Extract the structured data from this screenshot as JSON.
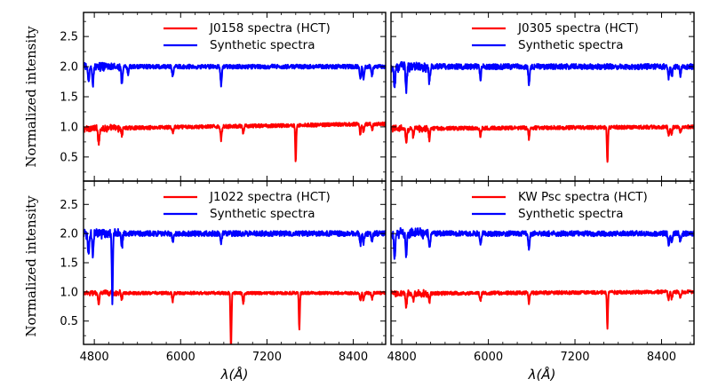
{
  "figure": {
    "ylabel": "Normalized intensity",
    "xlabel": "λ(Å)"
  },
  "chart_data": [
    {
      "type": "line",
      "panel": "top-left",
      "xlim": [
        4650,
        8850
      ],
      "ylim": [
        0.1,
        2.9
      ],
      "xticks": [
        4800,
        6000,
        7200,
        8400
      ],
      "xtick_labels": [
        "4800",
        "6000",
        "7200",
        "8400"
      ],
      "yticks": [
        0.5,
        1.0,
        1.5,
        2.0,
        2.5
      ],
      "ytick_labels": [
        "0.5",
        "1.0",
        "1.5",
        "2.0",
        "2.5"
      ],
      "legend_position": "top-right",
      "series": [
        {
          "name": "J0158 spectra (HCT)",
          "color": "#ff0000",
          "baseline": 0.97,
          "noise": 0.03,
          "slope": 0.08,
          "features": [
            [
              4861,
              0.26
            ],
            [
              5183,
              0.12
            ],
            [
              5890,
              0.1
            ],
            [
              6563,
              0.22
            ],
            [
              6870,
              0.14
            ],
            [
              7600,
              0.6
            ],
            [
              8498,
              0.16
            ],
            [
              8542,
              0.12
            ],
            [
              8662,
              0.1
            ]
          ]
        },
        {
          "name": "Synthetic spectra",
          "color": "#0000ff",
          "baseline": 2.0,
          "noise": 0.035,
          "slope": 0.0,
          "features": [
            [
              4720,
              0.28
            ],
            [
              4780,
              0.32
            ],
            [
              5183,
              0.3
            ],
            [
              5270,
              0.12
            ],
            [
              5890,
              0.15
            ],
            [
              6563,
              0.32
            ],
            [
              8498,
              0.22
            ],
            [
              8542,
              0.2
            ],
            [
              8662,
              0.15
            ]
          ]
        }
      ]
    },
    {
      "type": "line",
      "panel": "top-right",
      "xlim": [
        4650,
        8850
      ],
      "ylim": [
        0.1,
        2.9
      ],
      "xticks": [
        4800,
        6000,
        7200,
        8400
      ],
      "xtick_labels": [
        "4800",
        "6000",
        "7200",
        "8400"
      ],
      "yticks": [
        0.5,
        1.0,
        1.5,
        2.0,
        2.5
      ],
      "ytick_labels": [
        "0.5",
        "1.0",
        "1.5",
        "2.0",
        "2.5"
      ],
      "legend_position": "top-right",
      "series": [
        {
          "name": "J0305 spectra (HCT)",
          "color": "#ff0000",
          "baseline": 0.97,
          "noise": 0.03,
          "slope": 0.03,
          "features": [
            [
              4861,
              0.24
            ],
            [
              4960,
              0.15
            ],
            [
              5183,
              0.18
            ],
            [
              5890,
              0.14
            ],
            [
              6563,
              0.18
            ],
            [
              7650,
              0.6
            ],
            [
              8498,
              0.14
            ],
            [
              8542,
              0.12
            ],
            [
              8662,
              0.1
            ]
          ]
        },
        {
          "name": "Synthetic spectra",
          "color": "#0000ff",
          "baseline": 2.0,
          "noise": 0.045,
          "slope": 0.0,
          "features": [
            [
              4700,
              0.35
            ],
            [
              4861,
              0.4
            ],
            [
              5183,
              0.25
            ],
            [
              5890,
              0.2
            ],
            [
              6563,
              0.3
            ],
            [
              8498,
              0.2
            ],
            [
              8542,
              0.18
            ],
            [
              8662,
              0.15
            ]
          ]
        }
      ]
    },
    {
      "type": "line",
      "panel": "bottom-left",
      "xlim": [
        4650,
        8850
      ],
      "ylim": [
        0.1,
        2.9
      ],
      "xticks": [
        4800,
        6000,
        7200,
        8400
      ],
      "xtick_labels": [
        "4800",
        "6000",
        "7200",
        "8400"
      ],
      "yticks": [
        0.5,
        1.0,
        1.5,
        2.0,
        2.5
      ],
      "ytick_labels": [
        "0.5",
        "1.0",
        "1.5",
        "2.0",
        "2.5"
      ],
      "legend_position": "top-right",
      "series": [
        {
          "name": "J1022 spectra (HCT)",
          "color": "#ff0000",
          "baseline": 0.98,
          "noise": 0.025,
          "slope": 0.0,
          "features": [
            [
              4861,
              0.2
            ],
            [
              5183,
              0.1
            ],
            [
              5890,
              0.14
            ],
            [
              6700,
              0.98
            ],
            [
              6870,
              0.18
            ],
            [
              7650,
              0.6
            ],
            [
              8498,
              0.14
            ],
            [
              8542,
              0.12
            ],
            [
              8662,
              0.1
            ]
          ]
        },
        {
          "name": "Synthetic spectra",
          "color": "#0000ff",
          "baseline": 2.0,
          "noise": 0.045,
          "slope": 0.0,
          "features": [
            [
              4720,
              0.35
            ],
            [
              4780,
              0.4
            ],
            [
              5050,
              1.2
            ],
            [
              5183,
              0.2
            ],
            [
              5890,
              0.15
            ],
            [
              6563,
              0.18
            ],
            [
              8498,
              0.2
            ],
            [
              8542,
              0.18
            ],
            [
              8662,
              0.15
            ]
          ]
        }
      ]
    },
    {
      "type": "line",
      "panel": "bottom-right",
      "xlim": [
        4650,
        8850
      ],
      "ylim": [
        0.1,
        2.9
      ],
      "xticks": [
        4800,
        6000,
        7200,
        8400
      ],
      "xtick_labels": [
        "4800",
        "6000",
        "7200",
        "8400"
      ],
      "yticks": [
        0.5,
        1.0,
        1.5,
        2.0,
        2.5
      ],
      "ytick_labels": [
        "0.5",
        "1.0",
        "1.5",
        "2.0",
        "2.5"
      ],
      "legend_position": "top-right",
      "series": [
        {
          "name": "KW Psc spectra (HCT)",
          "color": "#ff0000",
          "baseline": 0.97,
          "noise": 0.03,
          "slope": 0.03,
          "features": [
            [
              4861,
              0.24
            ],
            [
              4960,
              0.12
            ],
            [
              5183,
              0.15
            ],
            [
              5890,
              0.14
            ],
            [
              6563,
              0.18
            ],
            [
              7650,
              0.6
            ],
            [
              8498,
              0.14
            ],
            [
              8542,
              0.12
            ],
            [
              8662,
              0.1
            ]
          ]
        },
        {
          "name": "Synthetic spectra",
          "color": "#0000ff",
          "baseline": 2.0,
          "noise": 0.045,
          "slope": 0.0,
          "features": [
            [
              4700,
              0.4
            ],
            [
              4861,
              0.4
            ],
            [
              5183,
              0.25
            ],
            [
              5890,
              0.2
            ],
            [
              6563,
              0.28
            ],
            [
              8498,
              0.2
            ],
            [
              8542,
              0.18
            ],
            [
              8662,
              0.15
            ]
          ]
        }
      ]
    }
  ]
}
